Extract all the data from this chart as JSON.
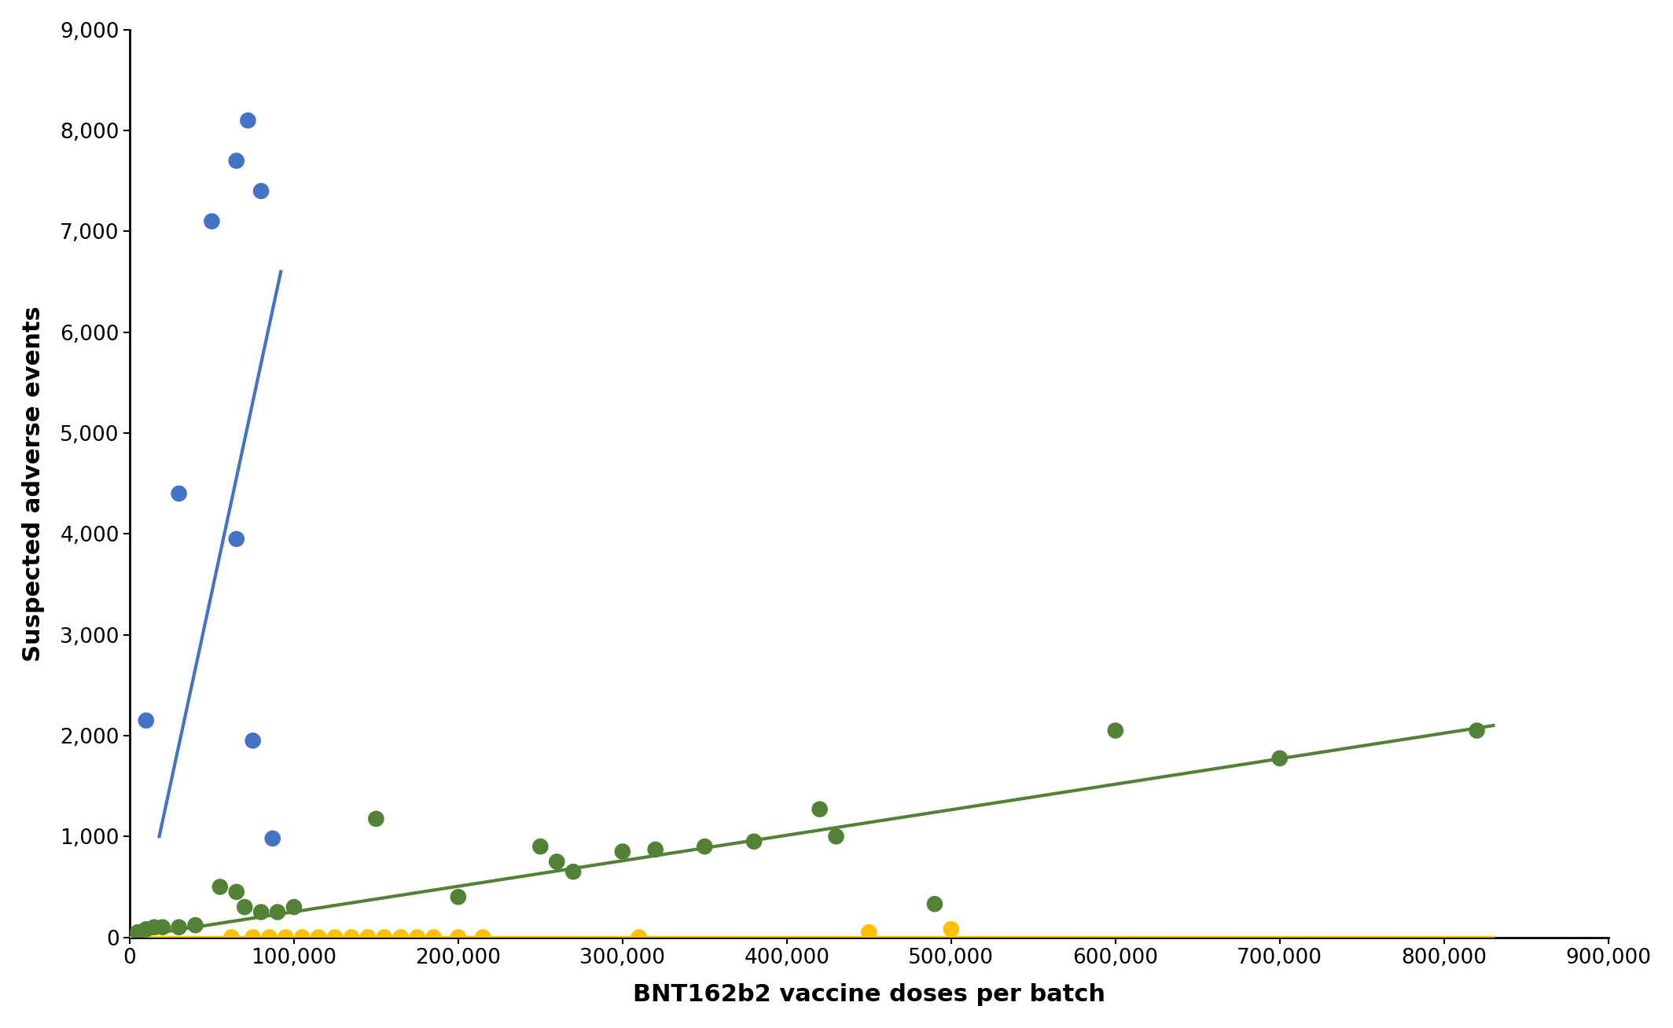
{
  "blue_x": [
    10000,
    30000,
    50000,
    65000,
    72000,
    80000,
    65000,
    75000,
    87000
  ],
  "blue_y": [
    2150,
    4400,
    7100,
    7700,
    8100,
    7400,
    3950,
    1950,
    980
  ],
  "green_x": [
    5000,
    10000,
    15000,
    20000,
    30000,
    40000,
    55000,
    65000,
    70000,
    80000,
    90000,
    100000,
    150000,
    200000,
    250000,
    260000,
    270000,
    300000,
    320000,
    350000,
    380000,
    420000,
    430000,
    490000,
    600000,
    700000,
    820000
  ],
  "green_y": [
    50,
    80,
    100,
    100,
    100,
    120,
    500,
    450,
    300,
    250,
    250,
    300,
    1175,
    400,
    900,
    750,
    650,
    850,
    870,
    900,
    950,
    1270,
    1000,
    330,
    2050,
    1775,
    2050
  ],
  "orange_x": [
    62000,
    75000,
    85000,
    95000,
    105000,
    115000,
    125000,
    135000,
    145000,
    155000,
    165000,
    175000,
    185000,
    200000,
    215000,
    310000,
    450000,
    500000
  ],
  "orange_y": [
    0,
    0,
    0,
    0,
    0,
    0,
    0,
    0,
    0,
    0,
    0,
    0,
    0,
    0,
    0,
    0,
    50,
    80
  ],
  "blue_color": "#4472C4",
  "green_color": "#538135",
  "orange_color": "#FFC000",
  "xlabel": "BNT162b2 vaccine doses per batch",
  "ylabel": "Suspected adverse events",
  "xlim": [
    0,
    900000
  ],
  "ylim": [
    0,
    9000
  ],
  "xticks": [
    0,
    100000,
    200000,
    300000,
    400000,
    500000,
    600000,
    700000,
    800000,
    900000
  ],
  "yticks": [
    0,
    1000,
    2000,
    3000,
    4000,
    5000,
    6000,
    7000,
    8000,
    9000
  ],
  "marker_size": 220,
  "blue_trendline_x": [
    18000,
    92000
  ],
  "blue_trendline_y": [
    1000,
    6600
  ],
  "green_trendline_x": [
    0,
    830000
  ],
  "green_trendline_y": [
    0,
    2100
  ],
  "orange_trendline_x": [
    0,
    830000
  ],
  "orange_trendline_y": [
    0,
    0
  ],
  "xlabel_fontsize": 22,
  "ylabel_fontsize": 22,
  "tick_fontsize": 19,
  "line_width": 3.0
}
